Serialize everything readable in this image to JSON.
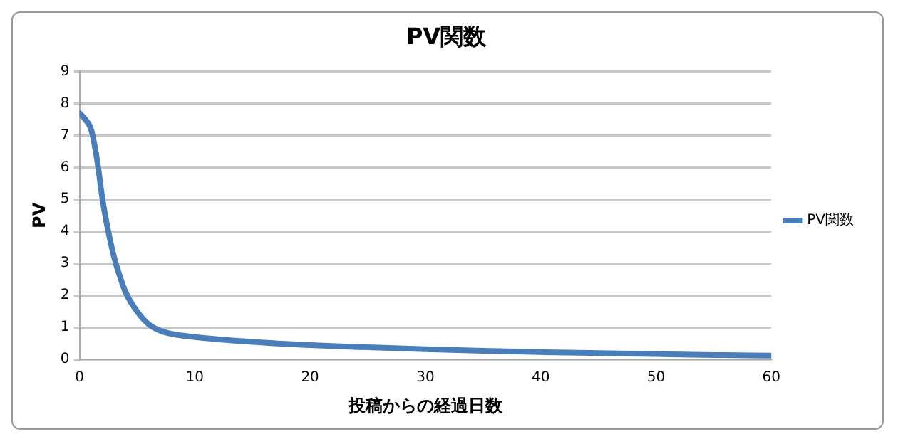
{
  "chart_data": {
    "type": "line",
    "title": "PV関数",
    "xlabel": "投稿からの経過日数",
    "ylabel": "PV",
    "series": [
      {
        "name": "PV関数",
        "color": "#4a7ebb",
        "x": [
          0,
          0.5,
          1,
          1.5,
          2,
          2.5,
          3,
          3.5,
          4,
          5,
          6,
          7,
          8,
          10,
          15,
          20,
          25,
          30,
          35,
          40,
          45,
          50,
          55,
          60
        ],
        "values": [
          7.7,
          7.5,
          7.2,
          6.3,
          5.0,
          4.0,
          3.2,
          2.6,
          2.1,
          1.5,
          1.1,
          0.9,
          0.8,
          0.7,
          0.55,
          0.45,
          0.38,
          0.32,
          0.27,
          0.23,
          0.2,
          0.17,
          0.14,
          0.12
        ]
      }
    ],
    "xlim": [
      0,
      60
    ],
    "xticks": [
      0,
      10,
      20,
      30,
      40,
      50,
      60
    ],
    "ylim": [
      0,
      9
    ],
    "yticks": [
      0,
      1,
      2,
      3,
      4,
      5,
      6,
      7,
      8,
      9
    ],
    "grid": "y",
    "legend": "right",
    "marker": "none",
    "line_style": "solid"
  }
}
